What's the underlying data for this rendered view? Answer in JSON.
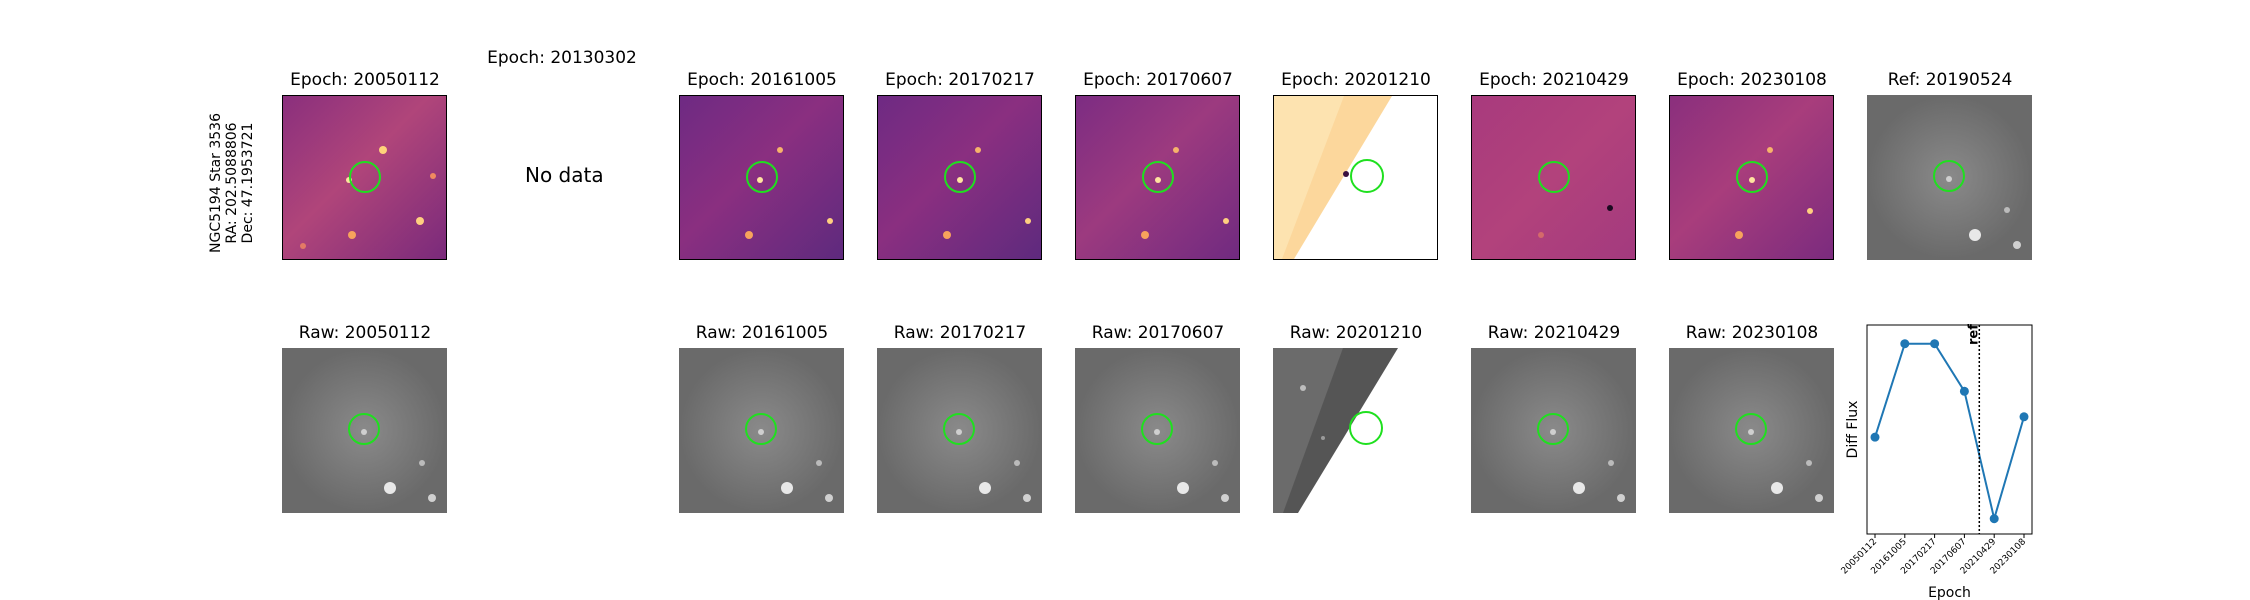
{
  "target": {
    "name": "NGC5194 Star 3536",
    "ra": "RA: 202.5088806",
    "dec": "Dec: 47.1953721"
  },
  "no_data_text": "No data",
  "diff_titles": [
    "Epoch: 20050112",
    "Epoch: 20130302",
    "Epoch: 20161005",
    "Epoch: 20170217",
    "Epoch: 20170607",
    "Epoch: 20201210",
    "Epoch: 20210429",
    "Epoch: 20230108"
  ],
  "ref_title": "Ref: 20190524",
  "raw_titles": [
    "Raw: 20050112",
    "Raw: 20161005",
    "Raw: 20170217",
    "Raw: 20170607",
    "Raw: 20201210",
    "Raw: 20210429",
    "Raw: 20230108"
  ],
  "colors": {
    "circle": "#1fe01f",
    "line": "#1f77b4"
  },
  "chart_data": {
    "type": "line",
    "xlabel": "Epoch",
    "ylabel": "Diff Flux",
    "categories": [
      "20050112",
      "20161005",
      "20170217",
      "20170607",
      "20210429",
      "20230108"
    ],
    "values": [
      0.45,
      1.0,
      1.0,
      0.72,
      -0.03,
      0.57
    ],
    "ylim": [
      -0.12,
      1.11
    ],
    "ref_line_label": "ref",
    "ref_line_position": 3.5,
    "grid": false
  }
}
